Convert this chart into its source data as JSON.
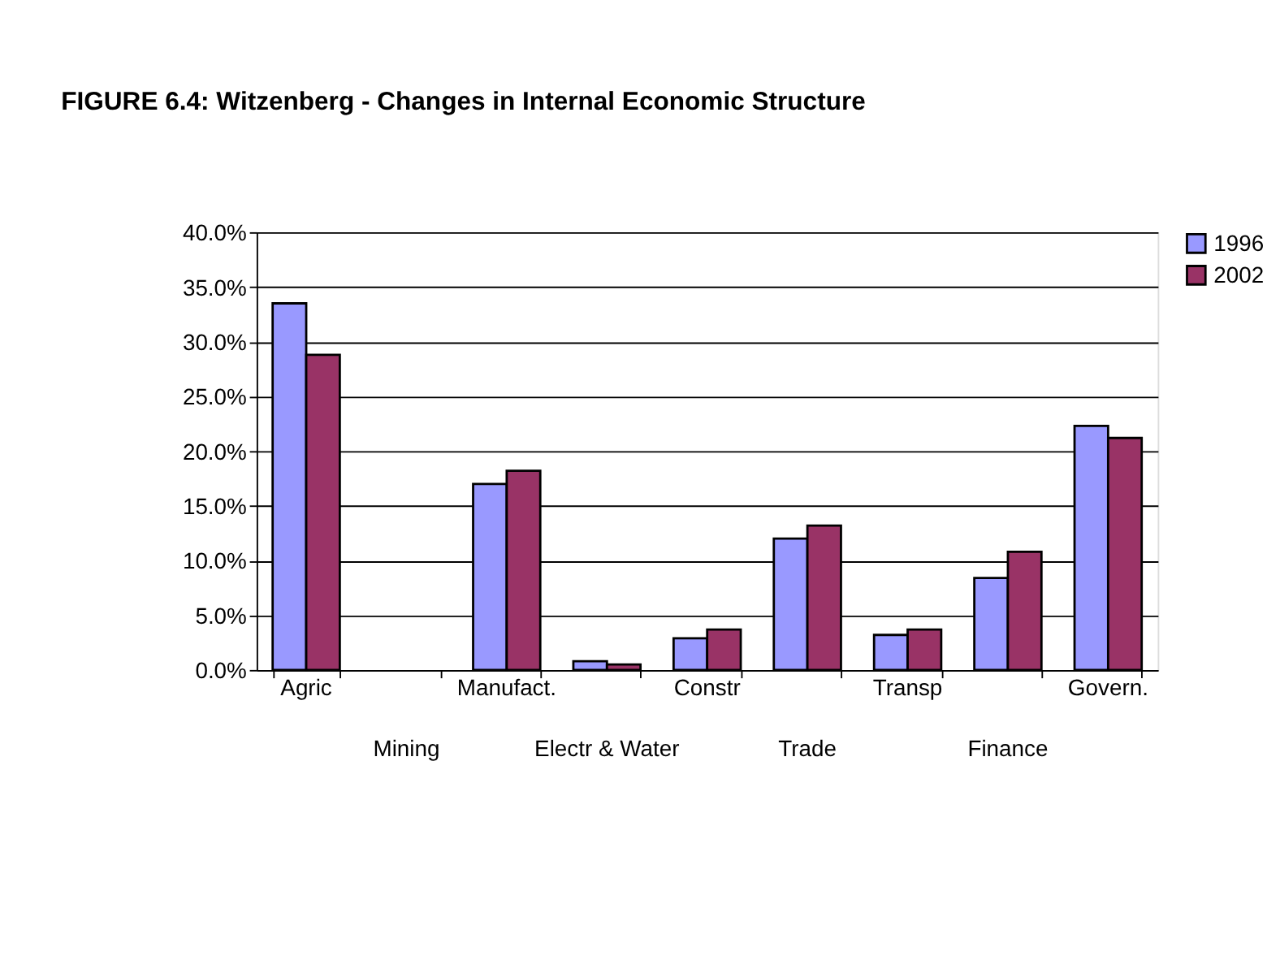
{
  "chart_data": {
    "type": "bar",
    "title": "FIGURE 6.4:  Witzenberg - Changes in Internal Economic Structure",
    "categories": [
      "Agric",
      "Mining",
      "Manufact.",
      "Electr & Water",
      "Constr",
      "Trade",
      "Transp",
      "Finance",
      "Govern."
    ],
    "series": [
      {
        "name": "1996",
        "color": "#9999ff",
        "values": [
          33.5,
          null,
          17.0,
          0.8,
          2.9,
          12.0,
          3.2,
          8.4,
          22.3
        ]
      },
      {
        "name": "2002",
        "color": "#993366",
        "values": [
          28.8,
          null,
          18.2,
          0.5,
          3.7,
          13.2,
          3.7,
          10.8,
          21.2
        ]
      }
    ],
    "ylim": [
      0,
      40
    ],
    "yticks": [
      {
        "value": 0,
        "label": "0.0%"
      },
      {
        "value": 5,
        "label": "5.0%"
      },
      {
        "value": 10,
        "label": "10.0%"
      },
      {
        "value": 15,
        "label": "15.0%"
      },
      {
        "value": 20,
        "label": "20.0%"
      },
      {
        "value": 25,
        "label": "25.0%"
      },
      {
        "value": 30,
        "label": "30.0%"
      },
      {
        "value": 35,
        "label": "35.0%"
      },
      {
        "value": 40,
        "label": "40.0%"
      }
    ],
    "grid": "y",
    "legend": "right"
  }
}
